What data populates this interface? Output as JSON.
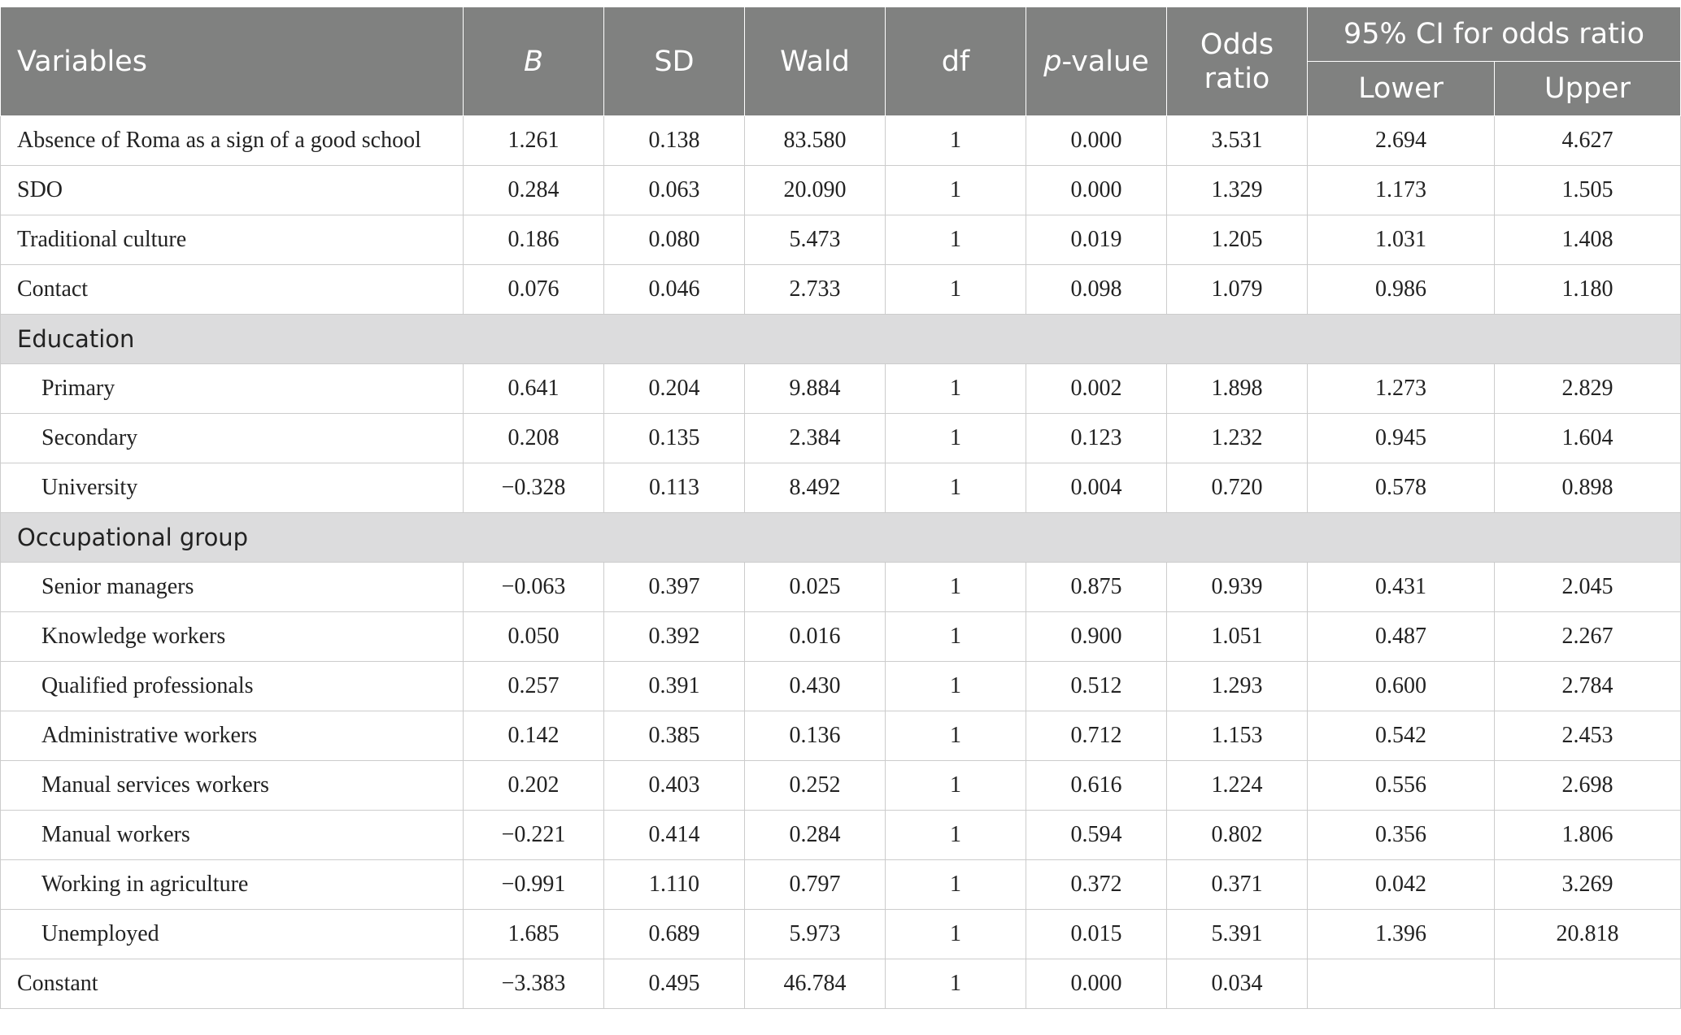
{
  "headers": {
    "variables": "Variables",
    "b": "B",
    "sd": "SD",
    "wald": "Wald",
    "df": "df",
    "p_italic": "p",
    "p_suffix": "-value",
    "odds_line1": "Odds",
    "odds_line2": "ratio",
    "ci": "95% CI for odds ratio",
    "lower": "Lower",
    "upper": "Upper"
  },
  "rows_main": [
    {
      "label": "Absence of Roma as a sign of a good school",
      "b": "1.261",
      "sd": "0.138",
      "wald": "83.580",
      "df": "1",
      "p": "0.000",
      "or": "3.531",
      "lower": "2.694",
      "upper": "4.627"
    },
    {
      "label": "SDO",
      "b": "0.284",
      "sd": "0.063",
      "wald": "20.090",
      "df": "1",
      "p": "0.000",
      "or": "1.329",
      "lower": "1.173",
      "upper": "1.505"
    },
    {
      "label": "Traditional culture",
      "b": "0.186",
      "sd": "0.080",
      "wald": "5.473",
      "df": "1",
      "p": "0.019",
      "or": "1.205",
      "lower": "1.031",
      "upper": "1.408"
    },
    {
      "label": "Contact",
      "b": "0.076",
      "sd": "0.046",
      "wald": "2.733",
      "df": "1",
      "p": "0.098",
      "or": "1.079",
      "lower": "0.986",
      "upper": "1.180"
    }
  ],
  "education": {
    "title": "Education",
    "rows": [
      {
        "label": "Primary",
        "b": "0.641",
        "sd": "0.204",
        "wald": "9.884",
        "df": "1",
        "p": "0.002",
        "or": "1.898",
        "lower": "1.273",
        "upper": "2.829"
      },
      {
        "label": "Secondary",
        "b": "0.208",
        "sd": "0.135",
        "wald": "2.384",
        "df": "1",
        "p": "0.123",
        "or": "1.232",
        "lower": "0.945",
        "upper": "1.604"
      },
      {
        "label": "University",
        "b": "−0.328",
        "sd": "0.113",
        "wald": "8.492",
        "df": "1",
        "p": "0.004",
        "or": "0.720",
        "lower": "0.578",
        "upper": "0.898"
      }
    ]
  },
  "occupation": {
    "title": "Occupational group",
    "rows": [
      {
        "label": "Senior managers",
        "b": "−0.063",
        "sd": "0.397",
        "wald": "0.025",
        "df": "1",
        "p": "0.875",
        "or": "0.939",
        "lower": "0.431",
        "upper": "2.045"
      },
      {
        "label": "Knowledge workers",
        "b": "0.050",
        "sd": "0.392",
        "wald": "0.016",
        "df": "1",
        "p": "0.900",
        "or": "1.051",
        "lower": "0.487",
        "upper": "2.267"
      },
      {
        "label": "Qualified professionals",
        "b": "0.257",
        "sd": "0.391",
        "wald": "0.430",
        "df": "1",
        "p": "0.512",
        "or": "1.293",
        "lower": "0.600",
        "upper": "2.784"
      },
      {
        "label": "Administrative workers",
        "b": "0.142",
        "sd": "0.385",
        "wald": "0.136",
        "df": "1",
        "p": "0.712",
        "or": "1.153",
        "lower": "0.542",
        "upper": "2.453"
      },
      {
        "label": "Manual services workers",
        "b": "0.202",
        "sd": "0.403",
        "wald": "0.252",
        "df": "1",
        "p": "0.616",
        "or": "1.224",
        "lower": "0.556",
        "upper": "2.698"
      },
      {
        "label": "Manual workers",
        "b": "−0.221",
        "sd": "0.414",
        "wald": "0.284",
        "df": "1",
        "p": "0.594",
        "or": "0.802",
        "lower": "0.356",
        "upper": "1.806"
      },
      {
        "label": "Working in agriculture",
        "b": "−0.991",
        "sd": "1.110",
        "wald": "0.797",
        "df": "1",
        "p": "0.372",
        "or": "0.371",
        "lower": "0.042",
        "upper": "3.269"
      },
      {
        "label": "Unemployed",
        "b": "1.685",
        "sd": "0.689",
        "wald": "5.973",
        "df": "1",
        "p": "0.015",
        "or": "5.391",
        "lower": "1.396",
        "upper": "20.818"
      }
    ]
  },
  "constant": {
    "label": "Constant",
    "b": "−3.383",
    "sd": "0.495",
    "wald": "46.784",
    "df": "1",
    "p": "0.000",
    "or": "0.034",
    "lower": "",
    "upper": ""
  }
}
